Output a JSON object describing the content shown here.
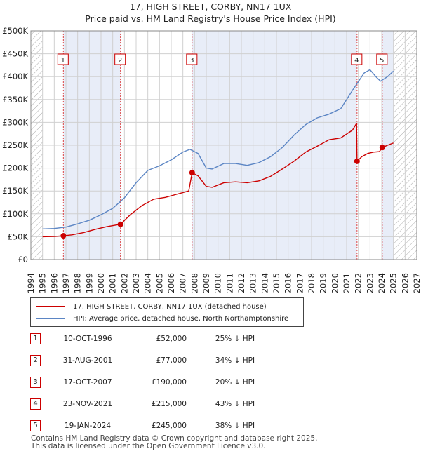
{
  "title_line1": "17, HIGH STREET, CORBY, NN17 1UX",
  "title_line2": "Price paid vs. HM Land Registry's House Price Index (HPI)",
  "colors": {
    "price_line": "#cc0000",
    "hpi_line": "#5b85c4",
    "shade": "#e8edf8",
    "grid": "#d0d0d0",
    "future_hatch": "#aaaaaa",
    "marker_outline": "#cc0000"
  },
  "chart_data": {
    "type": "line",
    "xlim": [
      1994,
      2027
    ],
    "ylim": [
      0,
      500000
    ],
    "x_ticks": [
      "1994",
      "1995",
      "1996",
      "1997",
      "1998",
      "1999",
      "2000",
      "2001",
      "2002",
      "2003",
      "2004",
      "2005",
      "2006",
      "2007",
      "2008",
      "2009",
      "2010",
      "2011",
      "2012",
      "2013",
      "2014",
      "2015",
      "2016",
      "2017",
      "2018",
      "2019",
      "2020",
      "2021",
      "2022",
      "2023",
      "2024",
      "2025",
      "2026",
      "2027"
    ],
    "y_ticks": [
      {
        "value": 0,
        "label": "£0"
      },
      {
        "value": 50000,
        "label": "£50K"
      },
      {
        "value": 100000,
        "label": "£100K"
      },
      {
        "value": 150000,
        "label": "£150K"
      },
      {
        "value": 200000,
        "label": "£200K"
      },
      {
        "value": 250000,
        "label": "£250K"
      },
      {
        "value": 300000,
        "label": "£300K"
      },
      {
        "value": 350000,
        "label": "£350K"
      },
      {
        "value": 400000,
        "label": "£400K"
      },
      {
        "value": 450000,
        "label": "£450K"
      },
      {
        "value": 500000,
        "label": "£500K"
      }
    ],
    "data_start": 1995.0,
    "data_end": 2025.0,
    "series": [
      {
        "name": "17, HIGH STREET, CORBY, NN17 1UX (detached house)",
        "color": "#cc0000",
        "points": [
          [
            1995.0,
            50000
          ],
          [
            1996.0,
            50500
          ],
          [
            1996.78,
            52000
          ],
          [
            1997.5,
            54000
          ],
          [
            1998.5,
            59000
          ],
          [
            1999.5,
            66000
          ],
          [
            2000.5,
            72000
          ],
          [
            2001.4,
            76000
          ],
          [
            2001.66,
            77000
          ],
          [
            2002.5,
            98000
          ],
          [
            2003.5,
            118000
          ],
          [
            2004.5,
            132000
          ],
          [
            2005.5,
            136000
          ],
          [
            2006.5,
            143000
          ],
          [
            2007.5,
            150000
          ],
          [
            2007.79,
            190000
          ],
          [
            2008.3,
            183000
          ],
          [
            2009.0,
            160000
          ],
          [
            2009.5,
            158000
          ],
          [
            2010.5,
            168000
          ],
          [
            2011.5,
            170000
          ],
          [
            2012.5,
            168000
          ],
          [
            2013.5,
            172000
          ],
          [
            2014.5,
            182000
          ],
          [
            2015.5,
            198000
          ],
          [
            2016.5,
            215000
          ],
          [
            2017.5,
            235000
          ],
          [
            2018.5,
            248000
          ],
          [
            2019.5,
            262000
          ],
          [
            2020.5,
            266000
          ],
          [
            2021.5,
            283000
          ],
          [
            2021.85,
            298000
          ],
          [
            2021.89,
            215000
          ],
          [
            2022.3,
            225000
          ],
          [
            2022.8,
            232000
          ],
          [
            2023.3,
            235000
          ],
          [
            2023.8,
            236000
          ],
          [
            2024.05,
            245000
          ],
          [
            2024.5,
            250000
          ],
          [
            2025.0,
            255000
          ]
        ]
      },
      {
        "name": "HPI: Average price, detached house, North Northamptonshire",
        "color": "#5b85c4",
        "points": [
          [
            1995.0,
            67000
          ],
          [
            1996.0,
            68000
          ],
          [
            1997.0,
            71000
          ],
          [
            1998.0,
            78000
          ],
          [
            1999.0,
            86000
          ],
          [
            2000.0,
            98000
          ],
          [
            2001.0,
            112000
          ],
          [
            2002.0,
            135000
          ],
          [
            2003.0,
            168000
          ],
          [
            2004.0,
            195000
          ],
          [
            2005.0,
            205000
          ],
          [
            2006.0,
            218000
          ],
          [
            2007.0,
            235000
          ],
          [
            2007.6,
            241000
          ],
          [
            2008.3,
            232000
          ],
          [
            2009.0,
            200000
          ],
          [
            2009.5,
            198000
          ],
          [
            2010.5,
            210000
          ],
          [
            2011.5,
            210000
          ],
          [
            2012.5,
            206000
          ],
          [
            2013.5,
            212000
          ],
          [
            2014.5,
            225000
          ],
          [
            2015.5,
            245000
          ],
          [
            2016.5,
            272000
          ],
          [
            2017.5,
            295000
          ],
          [
            2018.5,
            310000
          ],
          [
            2019.5,
            318000
          ],
          [
            2020.5,
            330000
          ],
          [
            2021.5,
            370000
          ],
          [
            2022.5,
            408000
          ],
          [
            2023.0,
            415000
          ],
          [
            2023.5,
            400000
          ],
          [
            2023.9,
            390000
          ],
          [
            2024.5,
            400000
          ],
          [
            2025.0,
            412000
          ]
        ]
      }
    ],
    "sale_markers": [
      {
        "num": "1",
        "x": 1996.78,
        "y": 52000
      },
      {
        "num": "2",
        "x": 2001.66,
        "y": 77000
      },
      {
        "num": "3",
        "x": 2007.79,
        "y": 190000
      },
      {
        "num": "4",
        "x": 2021.89,
        "y": 215000
      },
      {
        "num": "5",
        "x": 2024.05,
        "y": 245000
      }
    ]
  },
  "legend": {
    "items": [
      {
        "label": "17, HIGH STREET, CORBY, NN17 1UX (detached house)",
        "color": "#cc0000"
      },
      {
        "label": "HPI: Average price, detached house, North Northamptonshire",
        "color": "#5b85c4"
      }
    ]
  },
  "sales": [
    {
      "num": "1",
      "date": "10-OCT-1996",
      "price": "£52,000",
      "hpi": "25% ↓ HPI"
    },
    {
      "num": "2",
      "date": "31-AUG-2001",
      "price": "£77,000",
      "hpi": "34% ↓ HPI"
    },
    {
      "num": "3",
      "date": "17-OCT-2007",
      "price": "£190,000",
      "hpi": "20% ↓ HPI"
    },
    {
      "num": "4",
      "date": "23-NOV-2021",
      "price": "£215,000",
      "hpi": "43% ↓ HPI"
    },
    {
      "num": "5",
      "date": "19-JAN-2024",
      "price": "£245,000",
      "hpi": "38% ↓ HPI"
    }
  ],
  "footer": {
    "line1": "Contains HM Land Registry data © Crown copyright and database right 2025.",
    "line2": "This data is licensed under the Open Government Licence v3.0."
  }
}
